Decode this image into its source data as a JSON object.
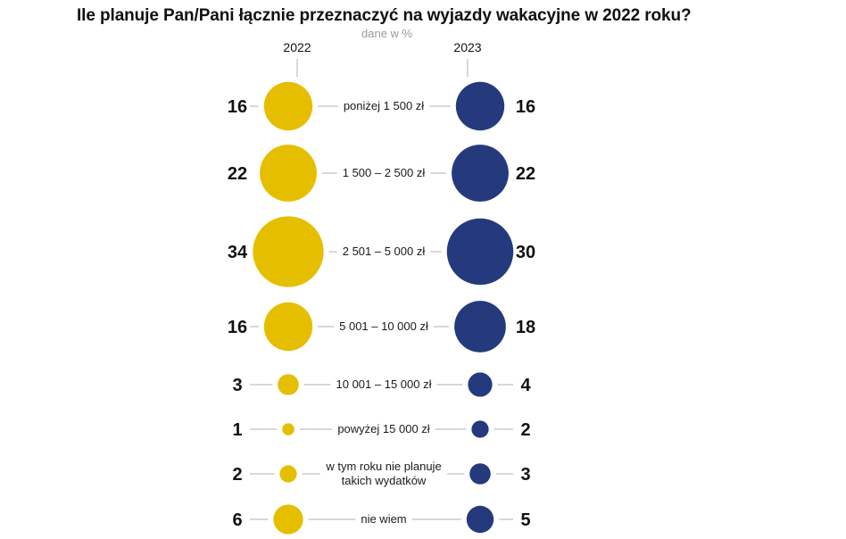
{
  "title": "Ile planuje Pan/Pani łącznie przeznaczyć na wyjazdy wakacyjne w 2022 roku?",
  "subtitle": "dane w %",
  "colors": {
    "series_2022": "#e6be00",
    "series_2023": "#253a7d",
    "connector": "#b0b0b0"
  },
  "chart_data": {
    "type": "bubble",
    "title": "Ile planuje Pan/Pani łącznie przeznaczyć na wyjazdy wakacyjne w 2022 roku?",
    "subtitle": "dane w %",
    "categories": [
      [
        "poniżej 1 500 zł"
      ],
      [
        "1 500 – 2 500 zł"
      ],
      [
        "2 501 – 5 000 zł"
      ],
      [
        "5 001 – 10 000 zł"
      ],
      [
        "10 001 – 15 000 zł"
      ],
      [
        "powyżej 15 000 zł"
      ],
      [
        "w tym roku nie planuje",
        "takich wydatków"
      ],
      [
        "nie wiem"
      ]
    ],
    "series": [
      {
        "name": "2022",
        "values": [
          16,
          22,
          34,
          16,
          3,
          1,
          2,
          6
        ]
      },
      {
        "name": "2023",
        "values": [
          16,
          22,
          30,
          18,
          4,
          2,
          3,
          5
        ]
      }
    ]
  }
}
